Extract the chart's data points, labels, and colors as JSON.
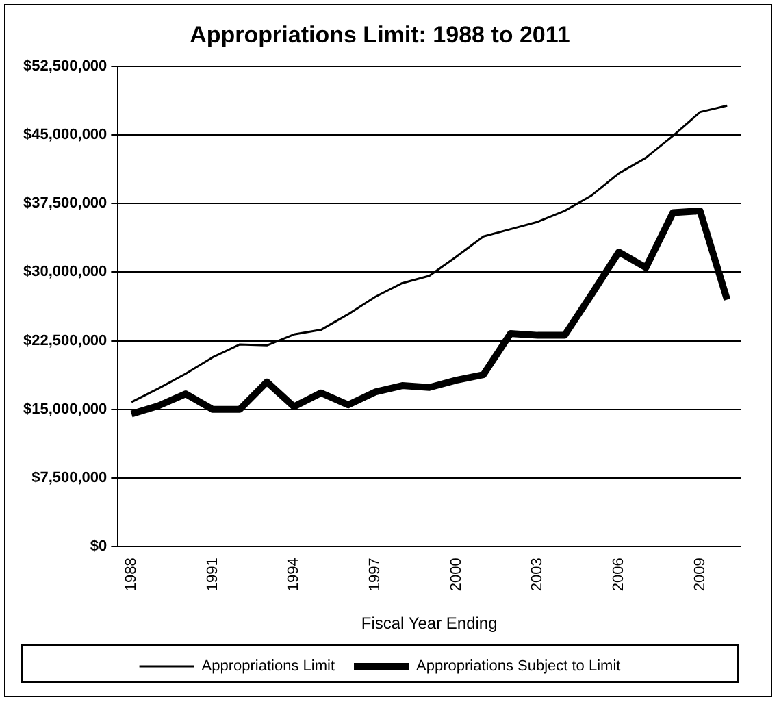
{
  "chart_data": {
    "type": "line",
    "title": "Appropriations Limit: 1988 to 2011",
    "xlabel": "Fiscal Year Ending",
    "categories": [
      "1988",
      null,
      null,
      "1991",
      null,
      null,
      "1994",
      null,
      null,
      "1997",
      null,
      null,
      "2000",
      null,
      null,
      "2003",
      null,
      null,
      "2006",
      null,
      null,
      "2009",
      null
    ],
    "series": [
      {
        "name": "Appropriations Limit",
        "color": "#000000",
        "values": [
          15800000,
          17300000,
          18900000,
          20700000,
          22100000,
          22000000,
          23200000,
          23700000,
          25400000,
          27300000,
          28800000,
          29600000,
          31700000,
          33900000,
          34700000,
          35500000,
          36700000,
          38400000,
          40800000,
          42500000,
          44900000,
          47500000,
          48200000
        ]
      },
      {
        "name": "Appropriations Subject to Limit",
        "color": "#000000",
        "values": [
          14500000,
          15400000,
          16700000,
          15000000,
          15000000,
          18000000,
          15300000,
          16800000,
          15500000,
          16900000,
          17600000,
          17400000,
          18200000,
          18800000,
          23300000,
          23100000,
          23100000,
          27600000,
          32200000,
          30500000,
          36500000,
          36700000,
          27000000
        ]
      }
    ],
    "ylim": [
      0,
      52500000
    ],
    "yticks": [
      {
        "value": 0,
        "label": "$0"
      },
      {
        "value": 7500000,
        "label": "$7,500,000"
      },
      {
        "value": 15000000,
        "label": "$15,000,000"
      },
      {
        "value": 22500000,
        "label": "$22,500,000"
      },
      {
        "value": 30000000,
        "label": "$30,000,000"
      },
      {
        "value": 37500000,
        "label": "$37,500,000"
      },
      {
        "value": 45000000,
        "label": "$45,000,000"
      },
      {
        "value": 52500000,
        "label": "$52,500,000"
      }
    ],
    "grid": "y",
    "legend": "bottom",
    "marker": "none",
    "line_style": "solid"
  }
}
